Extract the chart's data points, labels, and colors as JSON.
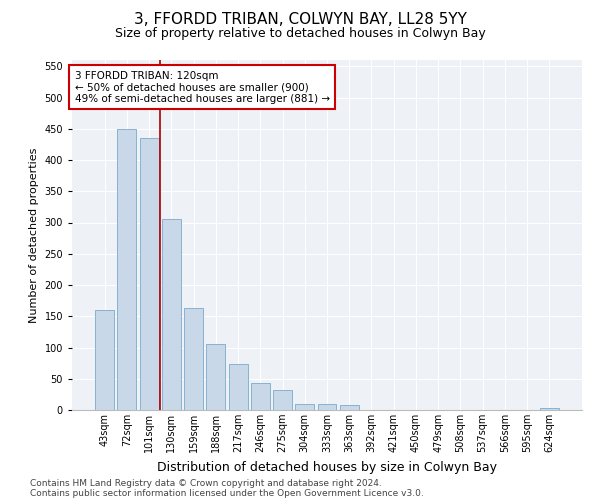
{
  "title": "3, FFORDD TRIBAN, COLWYN BAY, LL28 5YY",
  "subtitle": "Size of property relative to detached houses in Colwyn Bay",
  "xlabel": "Distribution of detached houses by size in Colwyn Bay",
  "ylabel": "Number of detached properties",
  "categories": [
    "43sqm",
    "72sqm",
    "101sqm",
    "130sqm",
    "159sqm",
    "188sqm",
    "217sqm",
    "246sqm",
    "275sqm",
    "304sqm",
    "333sqm",
    "363sqm",
    "392sqm",
    "421sqm",
    "450sqm",
    "479sqm",
    "508sqm",
    "537sqm",
    "566sqm",
    "595sqm",
    "624sqm"
  ],
  "values": [
    160,
    450,
    435,
    305,
    163,
    105,
    73,
    43,
    32,
    10,
    9,
    8,
    0,
    0,
    0,
    0,
    0,
    0,
    0,
    0,
    4
  ],
  "bar_color": "#c8d8e8",
  "bar_edge_color": "#7aaaca",
  "vline_x": 2.5,
  "vline_color": "#aa0000",
  "annotation_text": "3 FFORDD TRIBAN: 120sqm\n← 50% of detached houses are smaller (900)\n49% of semi-detached houses are larger (881) →",
  "annotation_box_color": "#ffffff",
  "annotation_box_edge_color": "#cc0000",
  "ylim": [
    0,
    560
  ],
  "yticks": [
    0,
    50,
    100,
    150,
    200,
    250,
    300,
    350,
    400,
    450,
    500,
    550
  ],
  "bg_color": "#eef2f7",
  "footer_line1": "Contains HM Land Registry data © Crown copyright and database right 2024.",
  "footer_line2": "Contains public sector information licensed under the Open Government Licence v3.0.",
  "title_fontsize": 11,
  "subtitle_fontsize": 9,
  "xlabel_fontsize": 9,
  "ylabel_fontsize": 8,
  "tick_fontsize": 7,
  "annotation_fontsize": 7.5,
  "footer_fontsize": 6.5
}
